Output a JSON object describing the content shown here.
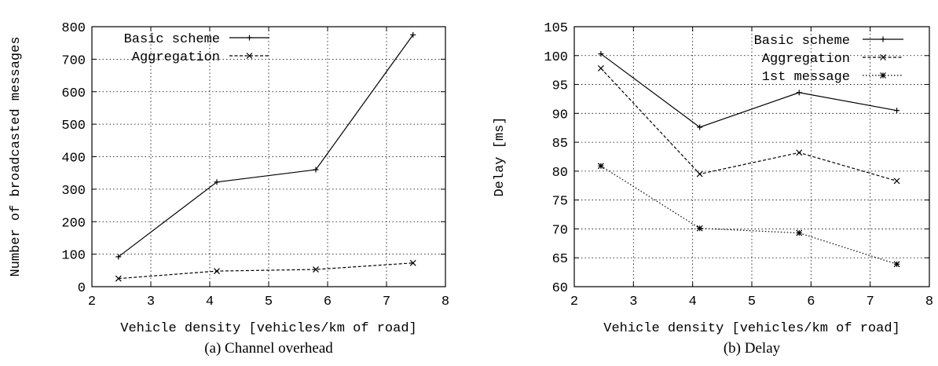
{
  "chart_data": [
    {
      "type": "line",
      "caption": "(a) Channel overhead",
      "xlabel": "Vehicle density [vehicles/km of road]",
      "ylabel": "Number of broadcasted messages",
      "xlim": [
        2,
        8
      ],
      "ylim": [
        0,
        800
      ],
      "xticks": [
        2,
        3,
        4,
        5,
        6,
        7,
        8
      ],
      "yticks": [
        0,
        100,
        200,
        300,
        400,
        500,
        600,
        700,
        800
      ],
      "grid": true,
      "legend_position": "top-left",
      "series": [
        {
          "name": "Basic scheme",
          "style": "solid",
          "marker": "plus",
          "x": [
            2.45,
            4.12,
            5.8,
            7.45
          ],
          "y": [
            92,
            322,
            360,
            775
          ]
        },
        {
          "name": "Aggregation",
          "style": "dashed",
          "marker": "cross",
          "x": [
            2.45,
            4.12,
            5.8,
            7.45
          ],
          "y": [
            25,
            48,
            53,
            73
          ]
        }
      ]
    },
    {
      "type": "line",
      "caption": "(b) Delay",
      "xlabel": "Vehicle density [vehicles/km of road]",
      "ylabel": "Delay [ms]",
      "xlim": [
        2,
        8
      ],
      "ylim": [
        60,
        105
      ],
      "xticks": [
        2,
        3,
        4,
        5,
        6,
        7,
        8
      ],
      "yticks": [
        60,
        65,
        70,
        75,
        80,
        85,
        90,
        95,
        100,
        105
      ],
      "grid": true,
      "legend_position": "top-right",
      "series": [
        {
          "name": "Basic scheme",
          "style": "solid",
          "marker": "plus",
          "x": [
            2.45,
            4.12,
            5.8,
            7.45
          ],
          "y": [
            100.3,
            87.6,
            93.6,
            90.5
          ]
        },
        {
          "name": "Aggregation",
          "style": "dashed",
          "marker": "cross",
          "x": [
            2.45,
            4.12,
            5.8,
            7.45
          ],
          "y": [
            97.8,
            79.5,
            83.2,
            78.3
          ]
        },
        {
          "name": "1st message",
          "style": "dotted",
          "marker": "star",
          "x": [
            2.45,
            4.12,
            5.8,
            7.45
          ],
          "y": [
            80.9,
            70.1,
            69.3,
            63.9
          ]
        }
      ]
    }
  ]
}
